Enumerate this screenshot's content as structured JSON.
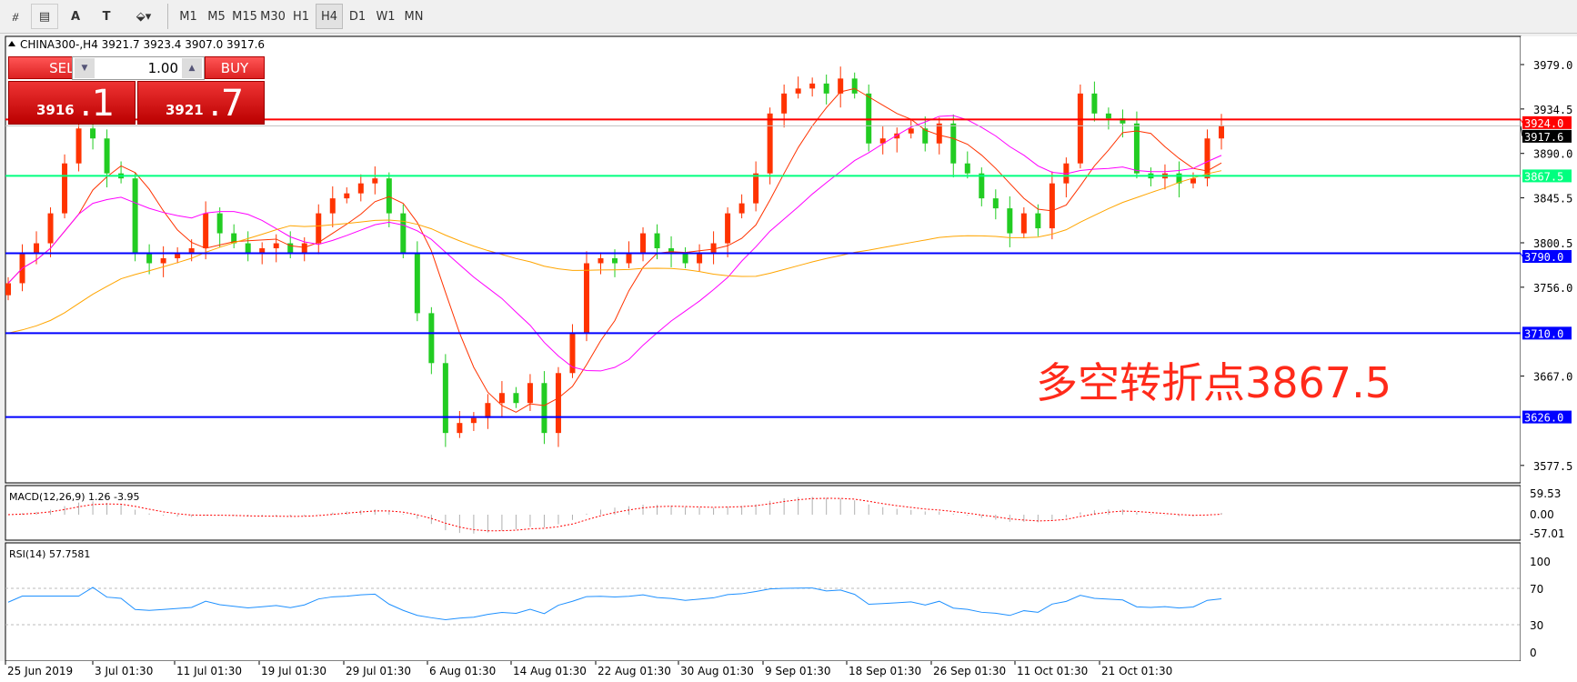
{
  "toolbar": {
    "tools": [
      {
        "icon": "period-separator-icon"
      },
      {
        "icon": "fibonacci-icon"
      },
      {
        "icon": "text-icon",
        "label": "A"
      },
      {
        "icon": "text-label-icon",
        "label": "T"
      },
      {
        "icon": "arrows-icon"
      }
    ],
    "timeframes": [
      "M1",
      "M5",
      "M15",
      "M30",
      "H1",
      "H4",
      "D1",
      "W1",
      "MN"
    ],
    "active_timeframe": "H4"
  },
  "chart": {
    "title": "CHINA300-,H4  3921.7 3923.4 3907.0 3917.6",
    "trade": {
      "sell_label": "SELL",
      "buy_label": "BUY",
      "lot": "1.00",
      "bid_main": "3916",
      "bid_frac": ".1",
      "ask_main": "3921",
      "ask_frac": ".7"
    },
    "annotation": "多空转折点3867.5",
    "annotation_color": "#ff2a1a",
    "macd_label": "MACD(12,26,9) 1.26 -3.95",
    "rsi_label": "RSI(14) 57.7581"
  },
  "chart_data": {
    "type": "candlestick",
    "symbol": "CHINA300-",
    "timeframe": "H4",
    "ylim": [
      3555,
      4005
    ],
    "price_ticks": [
      "3979.0",
      "3934.5",
      "3890.0",
      "3845.5",
      "3800.5",
      "3756.0",
      "3667.0",
      "3577.5"
    ],
    "date_ticks": [
      "25 Jun 2019",
      "3 Jul 01:30",
      "11 Jul 01:30",
      "19 Jul 01:30",
      "29 Jul 01:30",
      "6 Aug 01:30",
      "14 Aug 01:30",
      "22 Aug 01:30",
      "30 Aug 01:30",
      "9 Sep 01:30",
      "18 Sep 01:30",
      "26 Sep 01:30",
      "11 Oct 01:30",
      "21 Oct 01:30"
    ],
    "closes": [
      3760,
      3790,
      3800,
      3830,
      3880,
      3915,
      3905,
      3870,
      3865,
      3790,
      3780,
      3785,
      3790,
      3795,
      3830,
      3810,
      3800,
      3790,
      3795,
      3800,
      3790,
      3800,
      3830,
      3845,
      3850,
      3860,
      3865,
      3830,
      3790,
      3730,
      3680,
      3610,
      3620,
      3625,
      3640,
      3650,
      3640,
      3660,
      3610,
      3670,
      3710,
      3780,
      3785,
      3780,
      3790,
      3810,
      3795,
      3790,
      3780,
      3790,
      3800,
      3830,
      3840,
      3870,
      3930,
      3950,
      3955,
      3960,
      3950,
      3965,
      3950,
      3900,
      3905,
      3910,
      3915,
      3900,
      3920,
      3880,
      3870,
      3845,
      3835,
      3810,
      3830,
      3815,
      3860,
      3880,
      3950,
      3930,
      3925,
      3920,
      3870,
      3865,
      3870,
      3860,
      3865,
      3905,
      3917.6
    ],
    "bull_color": "#ff3300",
    "bear_color": "#22cc22",
    "hlines": [
      {
        "label": "3924.0",
        "value": 3924.0,
        "color": "#ff0000"
      },
      {
        "label": "3917.6",
        "value": 3917.6,
        "color": "#c0c0c0",
        "label_bg": "#000000"
      },
      {
        "label": "3867.5",
        "value": 3867.5,
        "color": "#00ff7f"
      },
      {
        "label": "3790.0",
        "value": 3790.0,
        "color": "#0000ff"
      },
      {
        "label": "3710.0",
        "value": 3710.0,
        "color": "#0000ff"
      },
      {
        "label": "3626.0",
        "value": 3626.0,
        "color": "#0000ff"
      }
    ],
    "ma_colors": [
      "#ff3300",
      "#ff00ff",
      "#ffa500"
    ],
    "macd": {
      "ticks": [
        "59.53",
        "0.00",
        "-57.01"
      ],
      "range": [
        -57.01,
        59.53
      ],
      "signal_color": "#ff0000",
      "hist_color": "#b0b0b0"
    },
    "rsi": {
      "ticks": [
        "100",
        "70",
        "30",
        "0"
      ],
      "levels": [
        70,
        30
      ],
      "color": "#1e90ff"
    }
  }
}
